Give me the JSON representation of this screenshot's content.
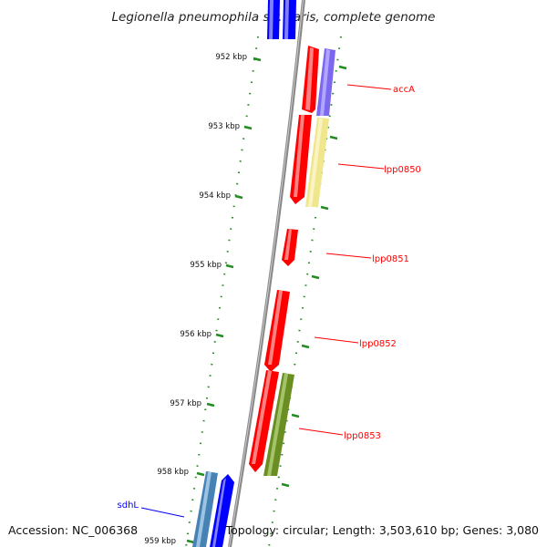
{
  "title": "Legionella pneumophila str. Paris, complete genome",
  "footer": {
    "accession": "Accession: NC_006368",
    "topology": "Topology: circular; Length: 3,503,610 bp; Genes: 3,080"
  },
  "ticks": [
    "952 kbp",
    "953 kbp",
    "954 kbp",
    "955 kbp",
    "956 kbp",
    "957 kbp",
    "958 kbp",
    "959 kbp"
  ],
  "gene_labels": {
    "accA": "accA",
    "lpp0850": "lpp0850",
    "lpp0851": "lpp0851",
    "lpp0852": "lpp0852",
    "lpp0853": "lpp0853",
    "sdhL": "sdhL"
  },
  "colors": {
    "red": "#ff0000",
    "blue": "#0000ff",
    "purple": "#7b68ee",
    "yellow": "#f0e68c",
    "olive": "#6b8e23",
    "steelblue": "#4682b4",
    "tick_green": "#228b22",
    "backbone": "#888888"
  }
}
